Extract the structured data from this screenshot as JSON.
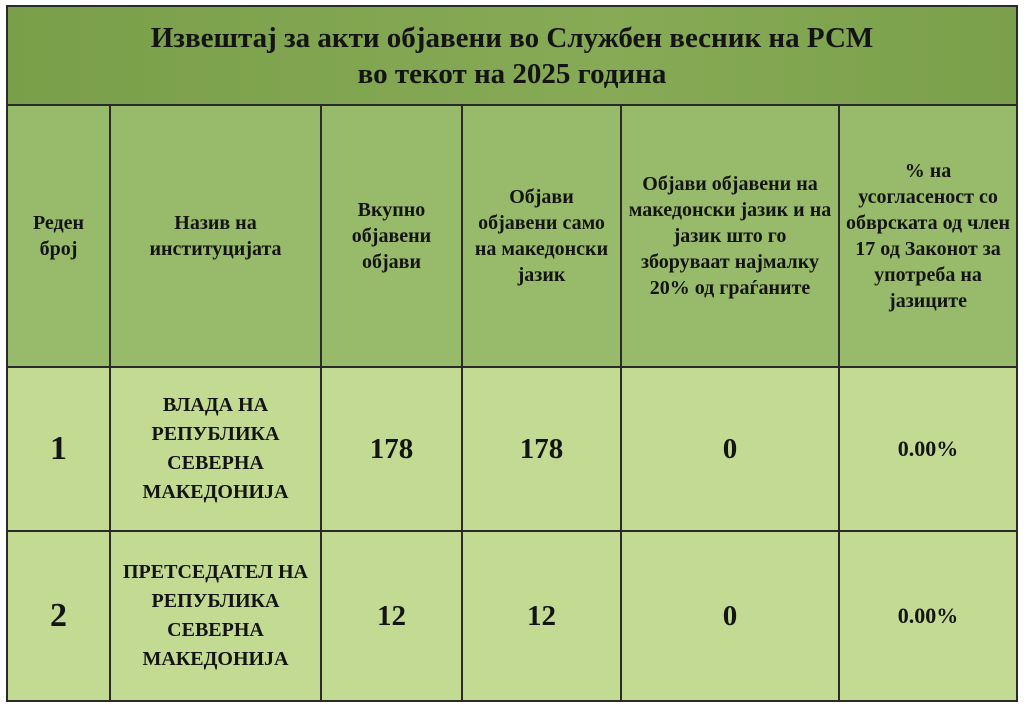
{
  "title": {
    "line1": "Извештај за акти објавени во Службен весник на РСМ",
    "line2": "во текот на 2025 година"
  },
  "columns": [
    "Реден број",
    "Назив на институцијата",
    "Вкупно објавени објави",
    "Објави објавени само на македонски јазик",
    "Објави објавени на македонски јазик и на јазик што го зборуваат најмалку 20% од граѓаните",
    "% на усогласеност со обврската од член 17 од Законот за употреба на јазиците"
  ],
  "rows": [
    {
      "no": "1",
      "institution": "ВЛАДА НА РЕПУБЛИКА СЕВЕРНА МАКЕДОНИЈА",
      "total": "178",
      "mk_only": "178",
      "mk_and_other": "0",
      "compliance": "0.00%"
    },
    {
      "no": "2",
      "institution": "ПРЕТСЕДАТЕЛ НА РЕПУБЛИКА СЕВЕРНА МАКЕДОНИЈА",
      "total": "12",
      "mk_only": "12",
      "mk_and_other": "0",
      "compliance": "0.00%"
    }
  ],
  "colors": {
    "title_bg": "#7fa34e",
    "header_bg": "#98ba6b",
    "body_bg": "#c3da93",
    "border": "#2a2a2a"
  }
}
